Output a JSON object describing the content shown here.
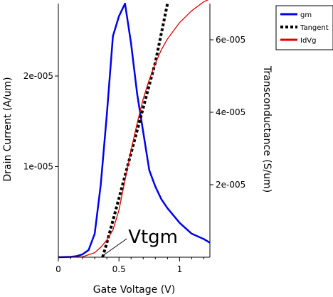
{
  "chart_data": {
    "type": "line",
    "xlabel": "Gate Voltage (V)",
    "ylabel_left": "Drain Current (A/um)",
    "ylabel_right": "Transconductance (S/um)",
    "xlim": [
      0,
      1.25
    ],
    "ylim_left": [
      0,
      2.8e-05
    ],
    "ylim_right": [
      0,
      7e-05
    ],
    "x_ticks": [
      {
        "value": 0,
        "label": "0"
      },
      {
        "value": 0.5,
        "label": "0.5"
      },
      {
        "value": 1.0,
        "label": "1"
      }
    ],
    "y_left_ticks": [
      {
        "value": 1e-05,
        "label": "1e-005"
      },
      {
        "value": 2e-05,
        "label": "2e-005"
      }
    ],
    "y_right_ticks": [
      {
        "value": 2e-05,
        "label": "2e-005"
      },
      {
        "value": 4e-05,
        "label": "4e-005"
      },
      {
        "value": 6e-05,
        "label": "6e-005"
      }
    ],
    "legend_position": "top-right, outside plot",
    "series": [
      {
        "name": "gm",
        "axis": "right",
        "color": "#0000ee",
        "style": "solid",
        "x": [
          0,
          0.1,
          0.15,
          0.2,
          0.25,
          0.3,
          0.35,
          0.4,
          0.45,
          0.5,
          0.55,
          0.6,
          0.65,
          0.7,
          0.75,
          0.8,
          0.85,
          0.9,
          1.0,
          1.1,
          1.2,
          1.25
        ],
        "y": [
          0,
          1e-07,
          3e-07,
          8e-07,
          2e-06,
          6.5e-06,
          2e-05,
          3.95e-05,
          6.1e-05,
          6.65e-05,
          7e-05,
          5.9e-05,
          4.5e-05,
          3.45e-05,
          2.4e-05,
          1.95e-05,
          1.6e-05,
          1.35e-05,
          9.5e-06,
          6.5e-06,
          5e-06,
          4e-06
        ]
      },
      {
        "name": "Tangent",
        "axis": "left",
        "color": "#000000",
        "style": "dotted",
        "x": [
          0.365,
          0.4,
          0.5,
          0.6,
          0.7,
          0.8,
          0.9
        ],
        "y": [
          0,
          1.6e-06,
          6.5e-06,
          1.15e-05,
          1.65e-05,
          2.15e-05,
          2.8e-05
        ]
      },
      {
        "name": "IdVg",
        "axis": "left",
        "color": "#dd0000",
        "style": "solid",
        "x": [
          0,
          0.1,
          0.2,
          0.3,
          0.35,
          0.4,
          0.45,
          0.5,
          0.55,
          0.6,
          0.65,
          0.7,
          0.75,
          0.8,
          0.85,
          0.9,
          1.0,
          1.1,
          1.2,
          1.25
        ],
        "y": [
          0,
          0,
          5e-08,
          5e-07,
          1.1e-06,
          1.9e-06,
          3e-06,
          5.2e-06,
          8.5e-06,
          1.18e-05,
          1.48e-05,
          1.75e-05,
          1.96e-05,
          2.14e-05,
          2.29e-05,
          2.41e-05,
          2.59e-05,
          2.72e-05,
          2.82e-05,
          2.85e-05
        ]
      }
    ],
    "annotation": {
      "text": "Vtgm",
      "x": 0.365,
      "y": 0
    }
  }
}
